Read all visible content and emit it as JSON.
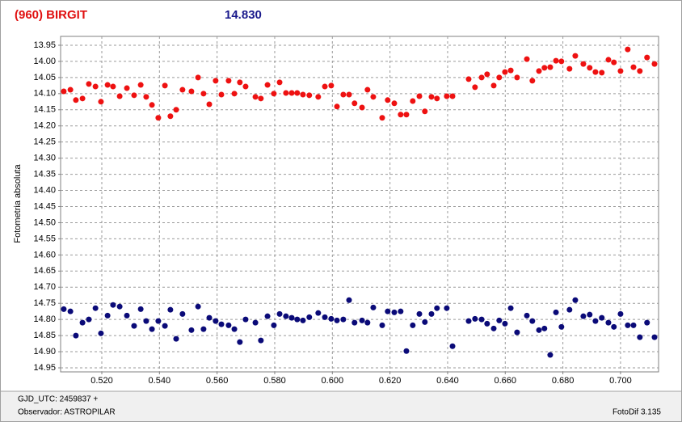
{
  "chart_data": {
    "type": "scatter",
    "title": "(960) BIRGIT",
    "subtitle": "14.830",
    "y_label": "Fotometria absoluta",
    "footer": {
      "left_top": "GJD_UTC: 2459837 +",
      "left_bottom": "Observador: ASTROPILAR",
      "right": "FotoDif 3.135"
    },
    "grid": true,
    "xlim": [
      0.5057,
      0.7132
    ],
    "ylim": [
      14.9625,
      13.9225
    ],
    "xticks": [
      {
        "value": 0.52,
        "label": "0.520"
      },
      {
        "value": 0.54,
        "label": "0.540"
      },
      {
        "value": 0.56,
        "label": "0.560"
      },
      {
        "value": 0.58,
        "label": "0.580"
      },
      {
        "value": 0.6,
        "label": "0.600"
      },
      {
        "value": 0.62,
        "label": "0.620"
      },
      {
        "value": 0.64,
        "label": "0.640"
      },
      {
        "value": 0.66,
        "label": "0.660"
      },
      {
        "value": 0.68,
        "label": "0.680"
      },
      {
        "value": 0.7,
        "label": "0.700"
      }
    ],
    "yticks": [
      13.95,
      {
        "value": 14.0,
        "label": "14.00"
      },
      14.05,
      {
        "value": 14.1,
        "label": "14.10"
      },
      14.15,
      {
        "value": 14.2,
        "label": "14.20"
      },
      14.25,
      {
        "value": 14.3,
        "label": "14.30"
      },
      14.35,
      {
        "value": 14.4,
        "label": "14.40"
      },
      14.45,
      {
        "value": 14.5,
        "label": "14.50"
      },
      14.55,
      {
        "value": 14.6,
        "label": "14.60"
      },
      14.65,
      {
        "value": 14.7,
        "label": "14.70"
      },
      14.75,
      {
        "value": 14.8,
        "label": "14.80"
      },
      14.85,
      {
        "value": 14.9,
        "label": "14.90"
      },
      14.95
    ],
    "x": [
      0.5068,
      0.5091,
      0.511,
      0.5133,
      0.5155,
      0.5178,
      0.5197,
      0.522,
      0.5239,
      0.5262,
      0.5287,
      0.5312,
      0.5335,
      0.5354,
      0.5374,
      0.5396,
      0.5419,
      0.5438,
      0.5458,
      0.548,
      0.5511,
      0.5534,
      0.5553,
      0.5573,
      0.5595,
      0.5615,
      0.564,
      0.566,
      0.5679,
      0.5699,
      0.5733,
      0.5752,
      0.5775,
      0.5797,
      0.5817,
      0.5839,
      0.5859,
      0.5878,
      0.5898,
      0.592,
      0.5951,
      0.5974,
      0.5996,
      0.6016,
      0.6038,
      0.6058,
      0.6077,
      0.6103,
      0.6122,
      0.6142,
      0.6173,
      0.6192,
      0.6215,
      0.6237,
      0.6257,
      0.6279,
      0.6302,
      0.6321,
      0.6344,
      0.6363,
      0.6397,
      0.6417,
      0.6473,
      0.6495,
      0.6518,
      0.6537,
      0.656,
      0.6579,
      0.6599,
      0.6619,
      0.6641,
      0.6675,
      0.6694,
      0.6717,
      0.6736,
      0.6756,
      0.6776,
      0.6795,
      0.6823,
      0.6843,
      0.6871,
      0.6893,
      0.6913,
      0.6935,
      0.6958,
      0.6977,
      0.7,
      0.7025,
      0.7045,
      0.7067,
      0.7092,
      0.7118
    ],
    "series": [
      {
        "color": "#ee1111",
        "values": [
          14.093,
          14.088,
          14.12,
          14.115,
          14.07,
          14.078,
          14.125,
          14.073,
          14.078,
          14.108,
          14.083,
          14.105,
          14.073,
          14.11,
          14.135,
          14.175,
          14.075,
          14.17,
          14.15,
          14.088,
          14.093,
          14.05,
          14.1,
          14.133,
          14.06,
          14.103,
          14.06,
          14.1,
          14.065,
          14.078,
          14.11,
          14.115,
          14.073,
          14.1,
          14.065,
          14.098,
          14.098,
          14.098,
          14.103,
          14.105,
          14.11,
          14.078,
          14.075,
          14.14,
          14.103,
          14.103,
          14.13,
          14.143,
          14.088,
          14.11,
          14.175,
          14.12,
          14.13,
          14.165,
          14.165,
          14.123,
          14.108,
          14.155,
          14.11,
          14.115,
          14.108,
          14.108,
          14.055,
          14.08,
          14.05,
          14.04,
          14.075,
          14.05,
          14.033,
          14.028,
          14.05,
          13.993,
          14.06,
          14.03,
          14.02,
          14.018,
          13.998,
          14.0,
          14.023,
          13.983,
          14.008,
          14.02,
          14.033,
          14.035,
          13.995,
          14.003,
          14.03,
          13.963,
          14.018,
          14.03,
          13.988,
          14.008
        ]
      },
      {
        "color": "#0a0a78",
        "values": [
          14.768,
          14.775,
          14.85,
          14.81,
          14.8,
          14.765,
          14.843,
          14.788,
          14.755,
          14.76,
          14.788,
          14.82,
          14.768,
          14.805,
          14.83,
          14.805,
          14.82,
          14.77,
          14.86,
          14.783,
          14.833,
          14.76,
          14.83,
          14.795,
          14.805,
          14.815,
          14.818,
          14.83,
          14.87,
          14.8,
          14.81,
          14.865,
          14.79,
          14.818,
          14.783,
          14.79,
          14.795,
          14.8,
          14.803,
          14.793,
          14.78,
          14.793,
          14.798,
          14.803,
          14.8,
          14.74,
          14.81,
          14.803,
          14.81,
          14.763,
          14.818,
          14.775,
          14.778,
          14.775,
          14.898,
          14.818,
          14.783,
          14.808,
          14.783,
          14.765,
          14.765,
          14.883,
          14.805,
          14.798,
          14.8,
          14.813,
          14.828,
          14.803,
          14.813,
          14.765,
          14.84,
          14.788,
          14.805,
          14.833,
          14.828,
          14.91,
          14.778,
          14.823,
          14.77,
          14.74,
          14.79,
          14.785,
          14.805,
          14.795,
          14.81,
          14.823,
          14.783,
          14.818,
          14.818,
          14.855,
          14.81,
          14.855
        ]
      }
    ]
  }
}
